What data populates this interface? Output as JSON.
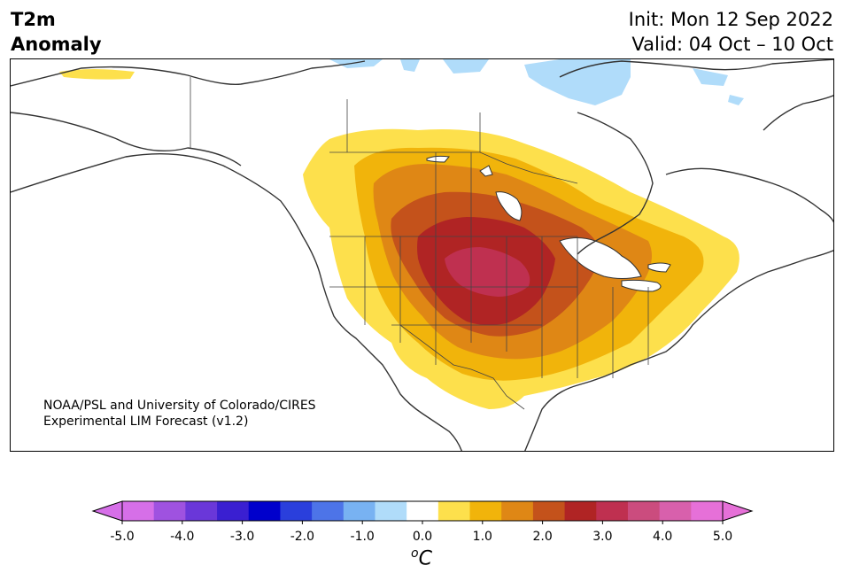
{
  "title": {
    "line1": "T2m",
    "line2": "Anomaly"
  },
  "init": {
    "line1": "Init: Mon 12 Sep 2022",
    "line2": "Valid: 04 Oct – 10 Oct"
  },
  "credit": {
    "line1": "NOAA/PSL and University of Colorado/CIRES",
    "line2": "Experimental LIM Forecast (v1.2)"
  },
  "colorbar": {
    "unit_base": "C",
    "unit_sup": "o",
    "tick_labels": [
      "-5.0",
      "-4.0",
      "-3.0",
      "-2.0",
      "-1.0",
      "0.0",
      "1.0",
      "2.0",
      "3.0",
      "4.0",
      "5.0"
    ],
    "levels": [
      -5.0,
      -4.5,
      -4.0,
      -3.5,
      -3.0,
      -2.5,
      -2.0,
      -1.5,
      -1.0,
      -0.5,
      0.5,
      1.0,
      1.5,
      2.0,
      2.5,
      3.0,
      3.5,
      4.0,
      4.5,
      5.0
    ],
    "colors": [
      "#d66fe8",
      "#9f52e0",
      "#6a37d9",
      "#3a1fd1",
      "#0000cc",
      "#2a3fdc",
      "#4d74e8",
      "#78b2f2",
      "#b0dcfa",
      "#ffffff",
      "#fde04c",
      "#f1b40b",
      "#df8715",
      "#c4521b",
      "#b02424",
      "#bf3050",
      "#cb4c7e",
      "#d860ac",
      "#e670d8"
    ],
    "under_color": "#d66fe8",
    "over_color": "#e670d8"
  },
  "map": {
    "region": "North America",
    "warm_anomaly_centre": "Northern Great Plains / Upper Midwest",
    "cool_anomaly_region": "Canadian Arctic Archipelago"
  }
}
